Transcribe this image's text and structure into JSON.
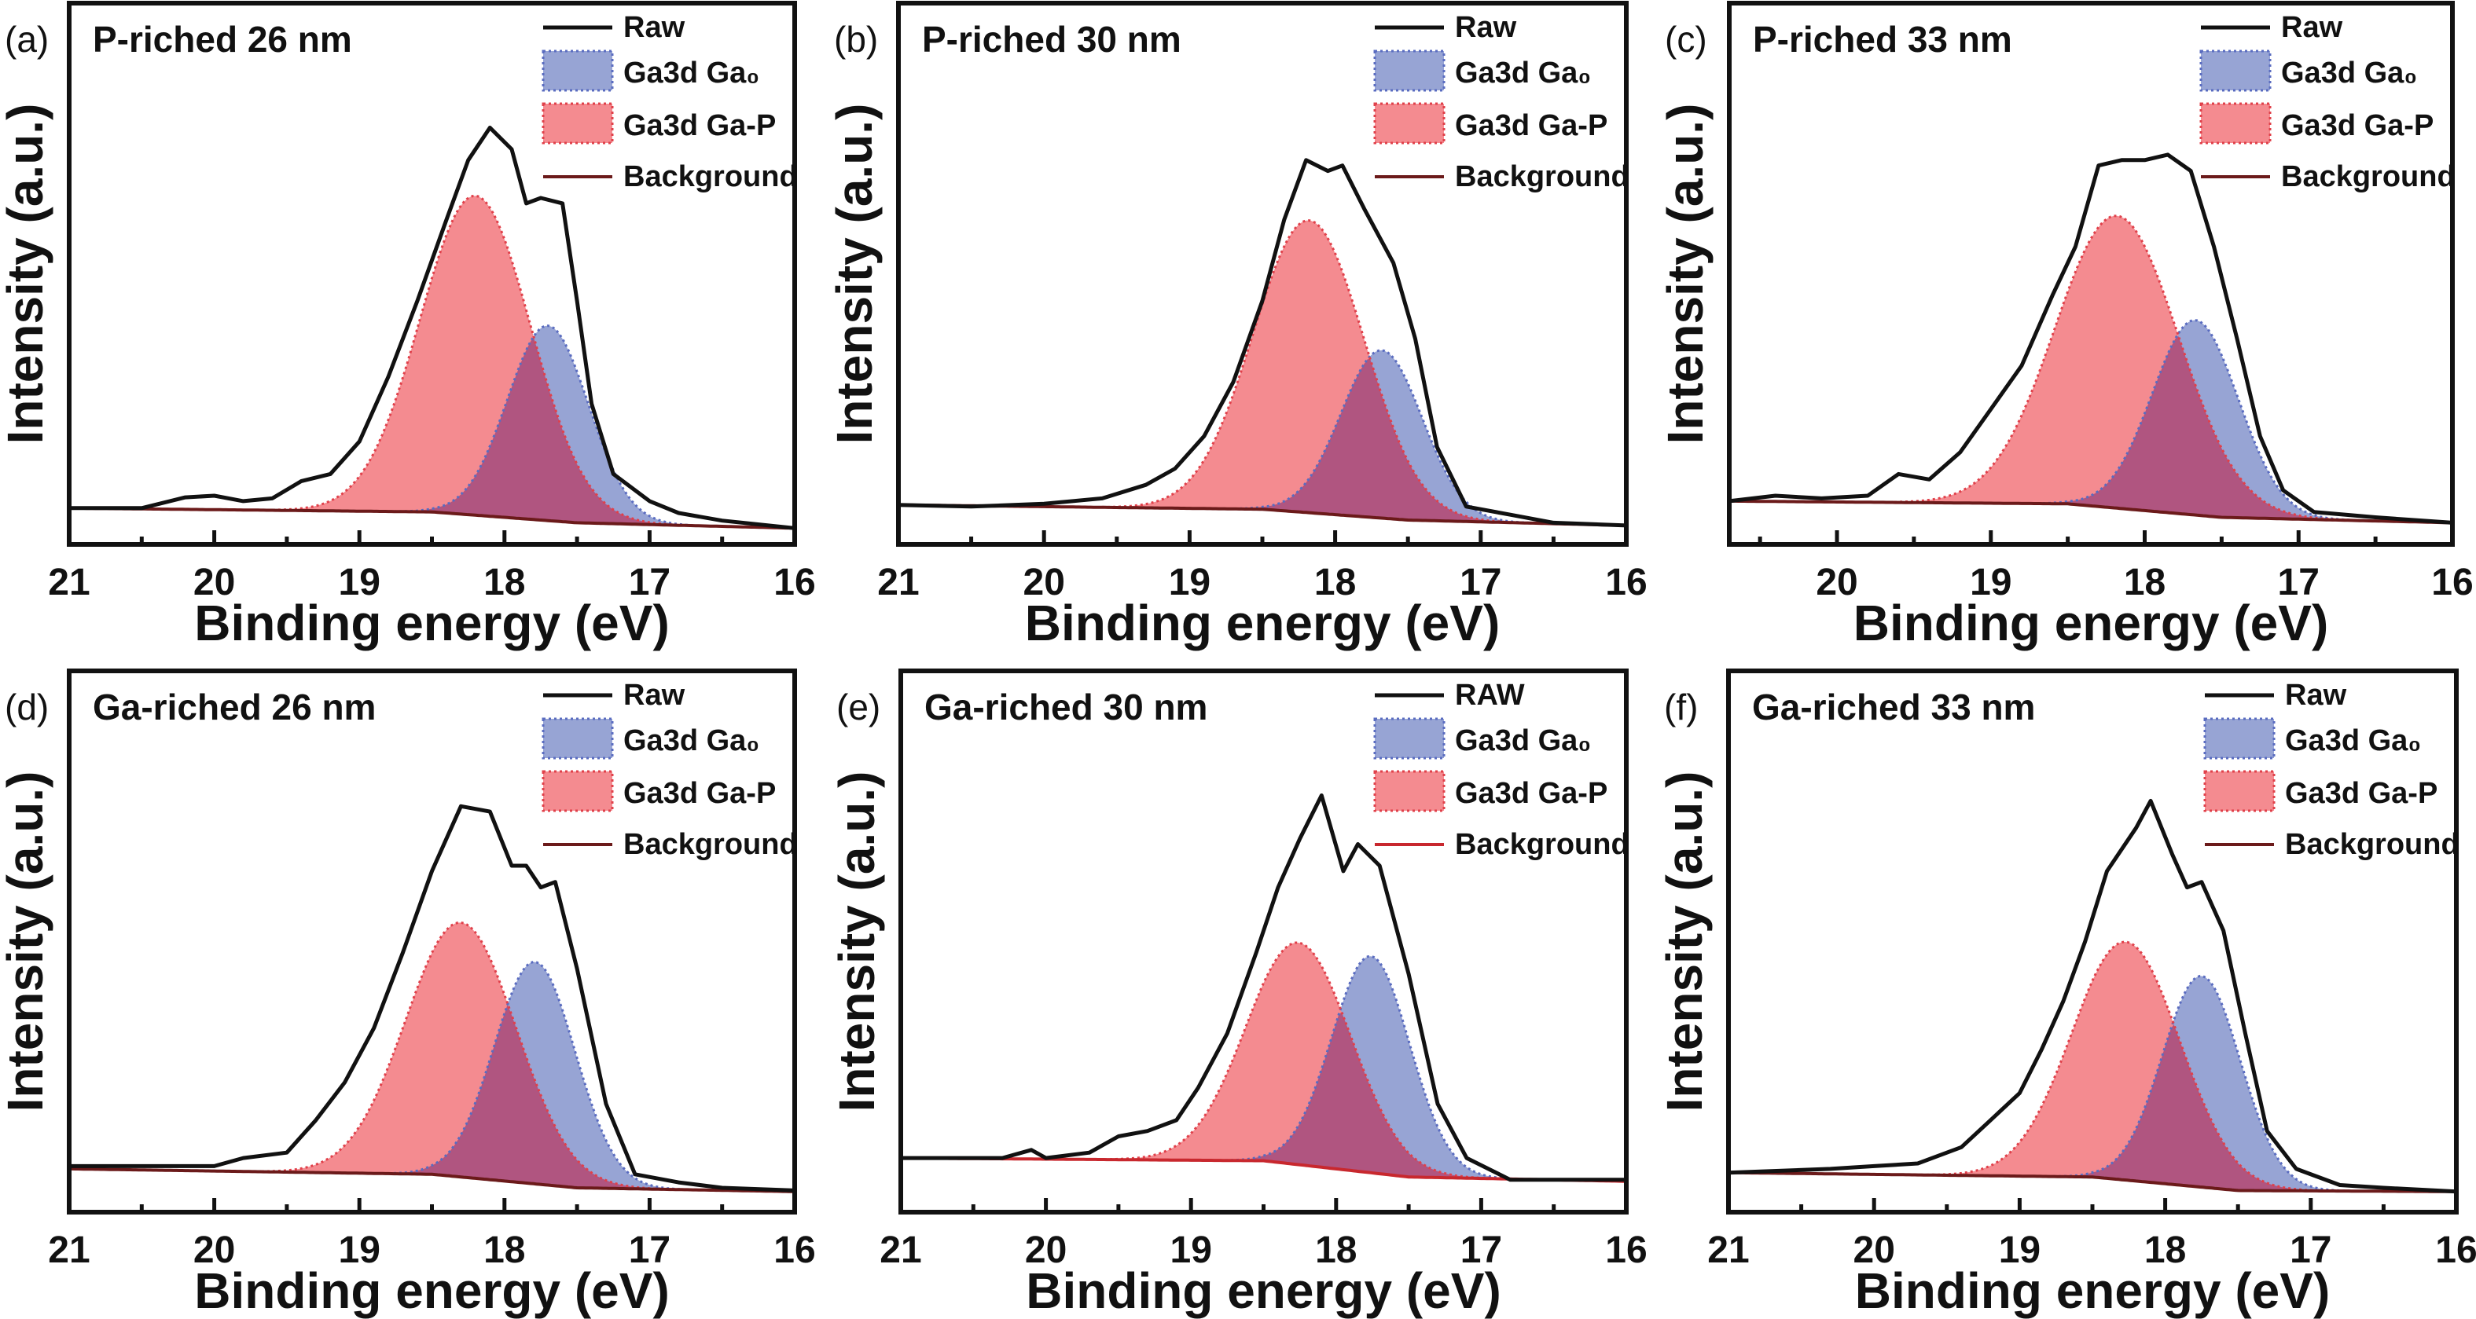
{
  "colors": {
    "raw": "#111111",
    "ga0_fill": "#97a4d4",
    "ga0_edge": "#5a6cc0",
    "gap_fill": "#f48b90",
    "gap_edge": "#e0404a",
    "overlap_fill": "#b05580",
    "background_line": "#6b1a1a",
    "background_line_e": "#c8282e"
  },
  "chart_data": [
    {
      "type": "area",
      "panel_label": "(a)",
      "title": "P-riched 26 nm",
      "xlabel": "Binding energy (eV)",
      "ylabel": "Intensity (a.u.)",
      "xlim": [
        21,
        16
      ],
      "ylim": [
        0,
        1
      ],
      "xticks": [
        "21",
        "20",
        "19",
        "18",
        "17",
        "16"
      ],
      "legend_position": "top-right",
      "grid": false,
      "series": [
        {
          "name": "Raw",
          "type": "line",
          "x": [
            21,
            20.5,
            20.2,
            20,
            19.8,
            19.6,
            19.4,
            19.2,
            19.0,
            18.8,
            18.6,
            18.4,
            18.25,
            18.1,
            17.95,
            17.85,
            17.75,
            17.6,
            17.5,
            17.4,
            17.25,
            17.0,
            16.8,
            16.5,
            16
          ],
          "y": [
            0.067,
            0.067,
            0.087,
            0.09,
            0.08,
            0.085,
            0.117,
            0.13,
            0.19,
            0.31,
            0.45,
            0.6,
            0.71,
            0.77,
            0.73,
            0.63,
            0.64,
            0.63,
            0.45,
            0.26,
            0.13,
            0.08,
            0.058,
            0.044,
            0.03
          ]
        },
        {
          "name": "Ga3d Ga₀",
          "type": "gaussian",
          "center": 17.7,
          "amplitude": 0.36,
          "sigma": 0.28
        },
        {
          "name": "Ga3d Ga-P",
          "type": "gaussian",
          "center": 18.2,
          "amplitude": 0.59,
          "sigma": 0.38
        },
        {
          "name": "Background",
          "type": "line",
          "x": [
            21,
            18.5,
            17.5,
            16
          ],
          "y": [
            0.067,
            0.06,
            0.04,
            0.03
          ]
        }
      ]
    },
    {
      "type": "area",
      "panel_label": "(b)",
      "title": "P-riched 30 nm",
      "xlabel": "Binding energy (eV)",
      "ylabel": "Intensity (a.u.)",
      "xlim": [
        21,
        16
      ],
      "ylim": [
        0,
        1
      ],
      "xticks": [
        "21",
        "20",
        "19",
        "18",
        "17",
        "16"
      ],
      "legend_position": "top-right",
      "grid": false,
      "series": [
        {
          "name": "Raw",
          "type": "line",
          "x": [
            21,
            20.5,
            20,
            19.6,
            19.3,
            19.1,
            18.9,
            18.7,
            18.5,
            18.35,
            18.2,
            18.05,
            17.95,
            17.8,
            17.6,
            17.45,
            17.3,
            17.1,
            16.8,
            16.5,
            16
          ],
          "y": [
            0.073,
            0.07,
            0.075,
            0.085,
            0.11,
            0.14,
            0.2,
            0.3,
            0.45,
            0.6,
            0.71,
            0.69,
            0.7,
            0.62,
            0.52,
            0.38,
            0.18,
            0.07,
            0.055,
            0.04,
            0.035
          ]
        },
        {
          "name": "Ga3d Ga₀",
          "type": "gaussian",
          "center": 17.68,
          "amplitude": 0.31,
          "sigma": 0.28
        },
        {
          "name": "Ga3d Ga-P",
          "type": "gaussian",
          "center": 18.18,
          "amplitude": 0.54,
          "sigma": 0.38
        },
        {
          "name": "Background",
          "type": "line",
          "x": [
            21,
            18.5,
            17.5,
            16
          ],
          "y": [
            0.073,
            0.065,
            0.045,
            0.035
          ]
        }
      ]
    },
    {
      "type": "area",
      "panel_label": "(c)",
      "title": "P-riched 33 nm",
      "xlabel": "Binding energy (eV)",
      "ylabel": "Intensity (a.u.)",
      "xlim": [
        20.7,
        16
      ],
      "ylim": [
        0,
        1
      ],
      "xticks": [
        "20",
        "19",
        "18",
        "17",
        "16"
      ],
      "legend_position": "top-right",
      "grid": false,
      "series": [
        {
          "name": "Raw",
          "type": "line",
          "x": [
            20.7,
            20.4,
            20.1,
            19.8,
            19.6,
            19.4,
            19.2,
            19.0,
            18.8,
            18.6,
            18.45,
            18.3,
            18.15,
            18.0,
            17.85,
            17.7,
            17.55,
            17.4,
            17.25,
            17.1,
            16.9,
            16.5,
            16
          ],
          "y": [
            0.08,
            0.09,
            0.085,
            0.09,
            0.13,
            0.12,
            0.17,
            0.25,
            0.33,
            0.46,
            0.55,
            0.7,
            0.71,
            0.71,
            0.72,
            0.69,
            0.55,
            0.38,
            0.2,
            0.1,
            0.06,
            0.05,
            0.04
          ]
        },
        {
          "name": "Ga3d Ga₀",
          "type": "gaussian",
          "center": 17.67,
          "amplitude": 0.36,
          "sigma": 0.28
        },
        {
          "name": "Ga3d Ga-P",
          "type": "gaussian",
          "center": 18.18,
          "amplitude": 0.54,
          "sigma": 0.4
        },
        {
          "name": "Background",
          "type": "line",
          "x": [
            20.7,
            18.5,
            17.5,
            16
          ],
          "y": [
            0.08,
            0.075,
            0.05,
            0.04
          ]
        }
      ]
    },
    {
      "type": "area",
      "panel_label": "(d)",
      "title": "Ga-riched 26 nm",
      "xlabel": "Binding energy (eV)",
      "ylabel": "Intensity (a.u.)",
      "xlim": [
        21,
        16
      ],
      "ylim": [
        0,
        1
      ],
      "xticks": [
        "21",
        "20",
        "19",
        "18",
        "17",
        "16"
      ],
      "legend_position": "top-right",
      "grid": false,
      "series": [
        {
          "name": "Raw",
          "type": "line",
          "x": [
            21,
            20.5,
            20,
            19.8,
            19.5,
            19.3,
            19.1,
            18.9,
            18.7,
            18.5,
            18.3,
            18.1,
            17.95,
            17.85,
            17.75,
            17.65,
            17.5,
            17.3,
            17.1,
            16.8,
            16.5,
            16
          ],
          "y": [
            0.085,
            0.085,
            0.085,
            0.1,
            0.11,
            0.17,
            0.24,
            0.34,
            0.48,
            0.63,
            0.75,
            0.74,
            0.64,
            0.64,
            0.6,
            0.61,
            0.45,
            0.2,
            0.07,
            0.055,
            0.045,
            0.04
          ]
        },
        {
          "name": "Ga3d Ga₀",
          "type": "gaussian",
          "center": 17.79,
          "amplitude": 0.41,
          "sigma": 0.28
        },
        {
          "name": "Ga3d Ga-P",
          "type": "gaussian",
          "center": 18.3,
          "amplitude": 0.47,
          "sigma": 0.38
        },
        {
          "name": "Background",
          "type": "line",
          "x": [
            21,
            18.5,
            17.5,
            16
          ],
          "y": [
            0.08,
            0.07,
            0.045,
            0.038
          ]
        }
      ]
    },
    {
      "type": "area",
      "panel_label": "(e)",
      "title": "Ga-riched 30 nm",
      "xlabel": "Binding energy (eV)",
      "ylabel": "Intensity (a.u.)",
      "xlim": [
        21,
        16
      ],
      "ylim": [
        0,
        1
      ],
      "xticks": [
        "21",
        "20",
        "19",
        "18",
        "17",
        "16"
      ],
      "legend_position": "top-right",
      "grid": false,
      "series": [
        {
          "name": "RAW",
          "type": "line",
          "x": [
            21,
            20.3,
            20.1,
            20,
            19.7,
            19.5,
            19.3,
            19.1,
            18.95,
            18.75,
            18.55,
            18.4,
            18.25,
            18.1,
            17.95,
            17.85,
            17.7,
            17.5,
            17.3,
            17.1,
            16.8,
            16.5,
            16
          ],
          "y": [
            0.1,
            0.1,
            0.115,
            0.1,
            0.11,
            0.14,
            0.15,
            0.17,
            0.23,
            0.33,
            0.48,
            0.6,
            0.69,
            0.77,
            0.63,
            0.68,
            0.64,
            0.44,
            0.2,
            0.1,
            0.06,
            0.06,
            0.06
          ]
        },
        {
          "name": "Ga3d Ga₀",
          "type": "gaussian",
          "center": 17.76,
          "amplitude": 0.4,
          "sigma": 0.27
        },
        {
          "name": "Ga3d Ga-P",
          "type": "gaussian",
          "center": 18.26,
          "amplitude": 0.41,
          "sigma": 0.36
        },
        {
          "name": "Background",
          "type": "line",
          "x": [
            21,
            18.5,
            17.5,
            16
          ],
          "y": [
            0.1,
            0.095,
            0.065,
            0.057
          ]
        }
      ]
    },
    {
      "type": "area",
      "panel_label": "(f)",
      "title": "Ga-riched 33 nm",
      "xlabel": "Binding energy (eV)",
      "ylabel": "Intensity (a.u.)",
      "xlim": [
        21,
        16
      ],
      "ylim": [
        0,
        1
      ],
      "xticks": [
        "21",
        "20",
        "19",
        "18",
        "17",
        "16"
      ],
      "legend_position": "top-right",
      "grid": false,
      "series": [
        {
          "name": "Raw",
          "type": "line",
          "x": [
            21,
            20.3,
            20,
            19.7,
            19.4,
            19.2,
            19.0,
            18.85,
            18.7,
            18.55,
            18.4,
            18.2,
            18.1,
            17.95,
            17.85,
            17.75,
            17.6,
            17.45,
            17.3,
            17.1,
            16.8,
            16.5,
            16
          ],
          "y": [
            0.073,
            0.08,
            0.085,
            0.09,
            0.12,
            0.17,
            0.22,
            0.3,
            0.39,
            0.5,
            0.63,
            0.71,
            0.76,
            0.66,
            0.6,
            0.61,
            0.52,
            0.33,
            0.15,
            0.08,
            0.05,
            0.045,
            0.038
          ]
        },
        {
          "name": "Ga3d Ga₀",
          "type": "gaussian",
          "center": 17.75,
          "amplitude": 0.39,
          "sigma": 0.27
        },
        {
          "name": "Ga3d Ga-P",
          "type": "gaussian",
          "center": 18.27,
          "amplitude": 0.44,
          "sigma": 0.37
        },
        {
          "name": "Background",
          "type": "line",
          "x": [
            21,
            18.5,
            17.5,
            16
          ],
          "y": [
            0.073,
            0.065,
            0.04,
            0.038
          ]
        }
      ]
    }
  ]
}
